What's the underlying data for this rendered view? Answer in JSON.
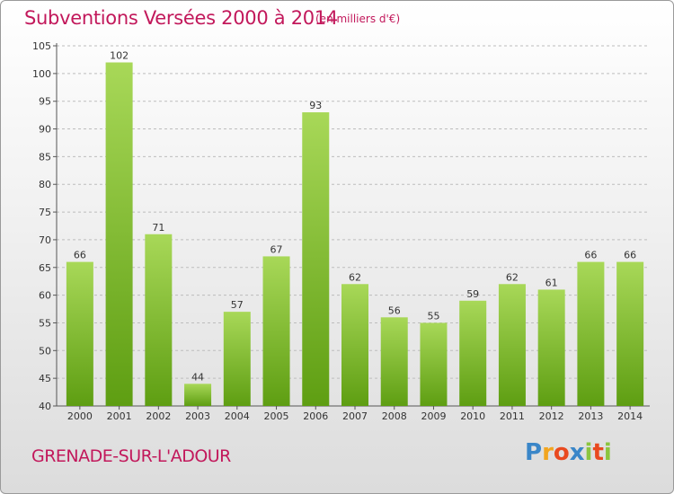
{
  "title": "Subventions Versées 2000 à 2014",
  "unit_note": "(en milliers d'€)",
  "place": "GRENADE-SUR-L'ADOUR",
  "brand": {
    "letters": [
      "P",
      "r",
      "o",
      "x",
      "i",
      "t",
      "i"
    ],
    "colors": [
      "#3a86c8",
      "#f2a51f",
      "#e94a1f",
      "#3a86c8",
      "#8bc53f",
      "#e94a1f",
      "#8bc53f"
    ]
  },
  "colors": {
    "bar_top": "#a8d858",
    "bar_bottom": "#5e9e12",
    "title": "#c2185b",
    "grid": "#bdbdbd"
  },
  "chart_data": {
    "type": "bar",
    "categories": [
      "2000",
      "2001",
      "2002",
      "2003",
      "2004",
      "2005",
      "2006",
      "2007",
      "2008",
      "2009",
      "2010",
      "2011",
      "2012",
      "2013",
      "2014"
    ],
    "values": [
      66,
      102,
      71,
      44,
      57,
      67,
      93,
      62,
      56,
      55,
      59,
      62,
      61,
      66,
      66
    ],
    "ylim": [
      40,
      105
    ],
    "yticks": [
      40,
      45,
      50,
      55,
      60,
      65,
      70,
      75,
      80,
      85,
      90,
      95,
      100,
      105
    ],
    "grid": true,
    "data_labels": true
  }
}
